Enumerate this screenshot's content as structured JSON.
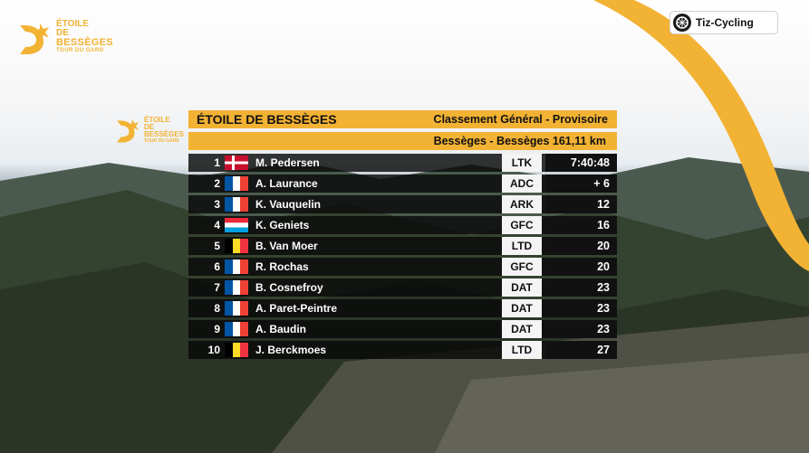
{
  "brand": {
    "line1": "ÉTOILE",
    "line2": "DE",
    "line3": "BESSÈGES",
    "line4": "TOUR DU GARD"
  },
  "watermark": {
    "label": "Tiz-Cycling",
    "icon": "cycling-wheel-icon"
  },
  "panel": {
    "title": "ÉTOILE DE BESSÈGES",
    "classification": "Classement Général - Provisoire",
    "stage": "Bessèges - Bessèges 161,11 km",
    "logo_text": {
      "line1": "ÉTOILE",
      "line2": "DE",
      "line3": "BESSÈGES",
      "line4": "TOUR DU GARD"
    }
  },
  "colors": {
    "accent": "#f2b233",
    "row_bg": "#0a0a0a",
    "team_bg": "#f4f4f4"
  },
  "standings": [
    {
      "rank": "1",
      "flag": "denmark",
      "name": "M. Pedersen",
      "team": "LTK",
      "gap": "7:40:48"
    },
    {
      "rank": "2",
      "flag": "france",
      "name": "A. Laurance",
      "team": "ADC",
      "gap": "+ 6"
    },
    {
      "rank": "3",
      "flag": "france",
      "name": "K. Vauquelin",
      "team": "ARK",
      "gap": "12"
    },
    {
      "rank": "4",
      "flag": "luxembourg",
      "name": "K. Geniets",
      "team": "GFC",
      "gap": "16"
    },
    {
      "rank": "5",
      "flag": "belgium",
      "name": "B. Van Moer",
      "team": "LTD",
      "gap": "20"
    },
    {
      "rank": "6",
      "flag": "france",
      "name": "R. Rochas",
      "team": "GFC",
      "gap": "20"
    },
    {
      "rank": "7",
      "flag": "france",
      "name": "B. Cosnefroy",
      "team": "DAT",
      "gap": "23"
    },
    {
      "rank": "8",
      "flag": "france",
      "name": "A. Paret-Peintre",
      "team": "DAT",
      "gap": "23"
    },
    {
      "rank": "9",
      "flag": "france",
      "name": "A. Baudin",
      "team": "DAT",
      "gap": "23"
    },
    {
      "rank": "10",
      "flag": "belgium",
      "name": "J. Berckmoes",
      "team": "LTD",
      "gap": "27"
    }
  ]
}
